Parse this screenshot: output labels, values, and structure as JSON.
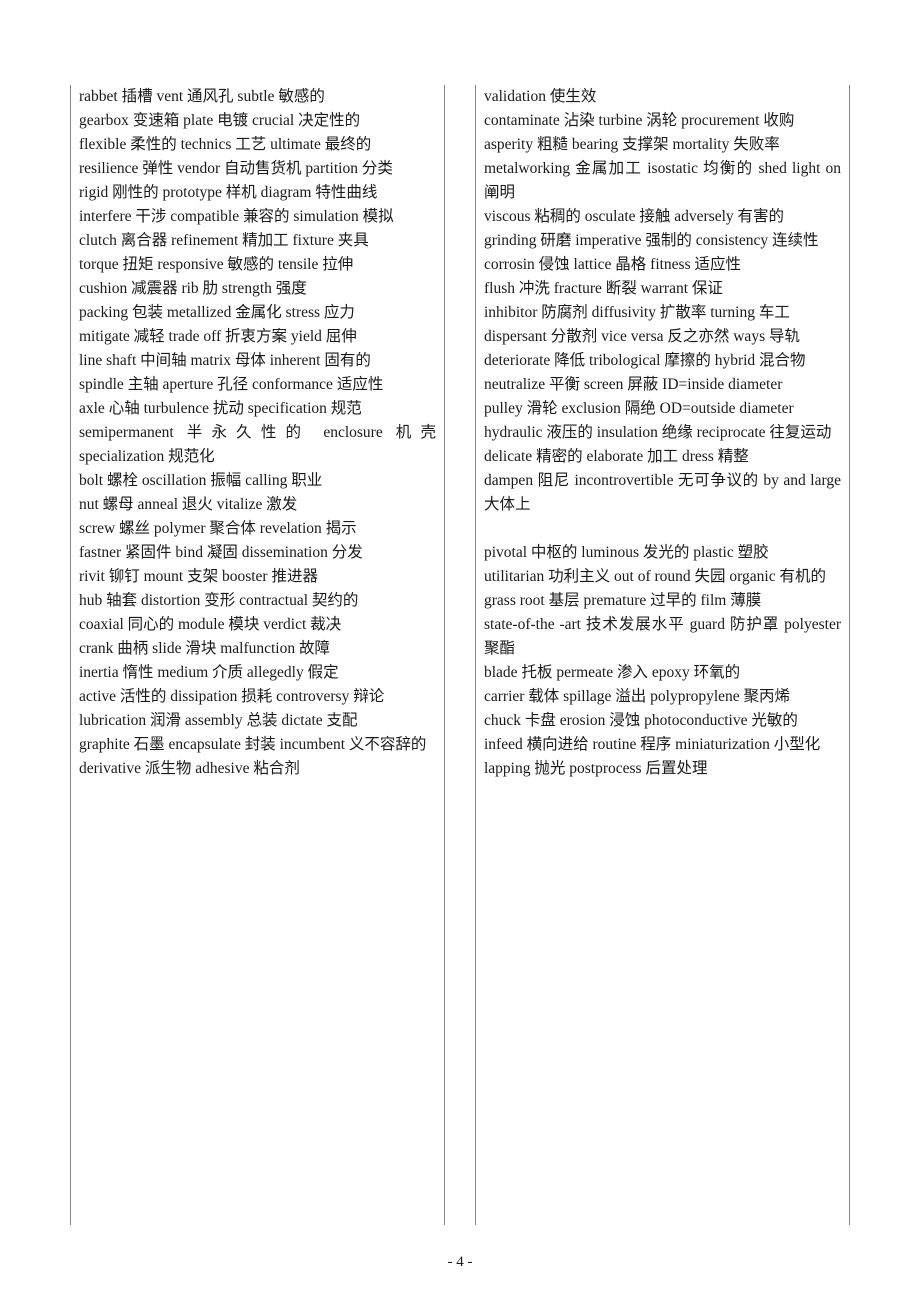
{
  "pageNumber": "- 4 -",
  "colors": {
    "text": "#1a1a1a",
    "border": "#888888",
    "background": "#ffffff"
  },
  "typography": {
    "fontSize": 15.5,
    "lineHeight": 24,
    "fontFamily": "Times New Roman / SimSun"
  },
  "col1": [
    "rabbet 插槽 vent 通风孔 subtle 敏感的",
    "gearbox 变速箱 plate 电镀 crucial 决定性的",
    "flexible 柔性的 technics 工艺 ultimate 最终的",
    "resilience 弹性 vendor 自动售货机 partition 分类",
    "rigid 刚性的 prototype 样机 diagram 特性曲线",
    "interfere 干涉 compatible 兼容的 simulation 模拟",
    "clutch 离合器 refinement 精加工 fixture 夹具",
    "torque 扭矩 responsive 敏感的 tensile 拉伸",
    "cushion 减震器 rib 肋 strength 强度",
    "packing 包装 metallized 金属化 stress 应力",
    "mitigate 减轻 trade off 折衷方案 yield 屈伸",
    "line shaft 中间轴 matrix 母体 inherent 固有的",
    "spindle 主轴 aperture 孔径 conformance 适应性",
    "axle 心轴 turbulence 扰动 specification 规范",
    "semipermanent 半永久性的 enclosure 机壳 specialization 规范化",
    "bolt 螺栓 oscillation 振幅 calling 职业",
    "nut 螺母 anneal 退火 vitalize 激发",
    "screw 螺丝 polymer 聚合体 revelation 揭示",
    "fastner 紧固件 bind 凝固 dissemination 分发",
    "rivit 铆钉 mount 支架 booster 推进器",
    "hub 轴套 distortion 变形 contractual 契约的",
    "coaxial 同心的 module 模块 verdict 裁决",
    "crank 曲柄 slide 滑块 malfunction 故障",
    "inertia 惰性 medium 介质 allegedly 假定",
    "active 活性的 dissipation 损耗 controversy 辩论",
    "lubrication 润滑 assembly 总装 dictate 支配",
    "graphite 石墨 encapsulate 封装 incumbent 义不容辞的",
    "derivative 派生物 adhesive 粘合剂"
  ],
  "col2a": [
    "validation 使生效",
    "contaminate 沾染 turbine 涡轮 procurement 收购",
    "asperity 粗糙 bearing 支撑架 mortality 失败率",
    "metalworking 金属加工 isostatic 均衡的 shed light on 阐明",
    "viscous 粘稠的 osculate 接触 adversely 有害的",
    "grinding 研磨 imperative 强制的 consistency 连续性",
    "corrosin 侵蚀 lattice 晶格 fitness 适应性",
    "flush 冲洗 fracture 断裂 warrant 保证",
    "inhibitor 防腐剂 diffusivity 扩散率 turning 车工",
    "dispersant 分散剂 vice versa 反之亦然 ways 导轨",
    "deteriorate 降低 tribological 摩擦的 hybrid 混合物",
    "neutralize 平衡 screen 屏蔽 ID=inside diameter",
    "pulley 滑轮 exclusion 隔绝 OD=outside diameter",
    "hydraulic 液压的 insulation 绝缘 reciprocate 往复运动",
    "delicate 精密的 elaborate 加工 dress 精整",
    "dampen 阻尼 incontrovertible 无可争议的 by and large 大体上"
  ],
  "col2b": [
    "pivotal 中枢的 luminous 发光的 plastic 塑胶",
    "utilitarian 功利主义 out of round 失园 organic 有机的",
    "grass root 基层 premature 过早的 film 薄膜",
    "state-of-the -art 技术发展水平 guard 防护罩 polyester 聚酯",
    "blade 托板 permeate 渗入 epoxy 环氧的",
    "carrier 载体 spillage 溢出 polypropylene 聚丙烯",
    "chuck 卡盘 erosion 浸蚀 photoconductive 光敏的",
    "infeed 横向进给 routine 程序 miniaturization 小型化",
    "lapping 抛光 postprocess 后置处理"
  ]
}
